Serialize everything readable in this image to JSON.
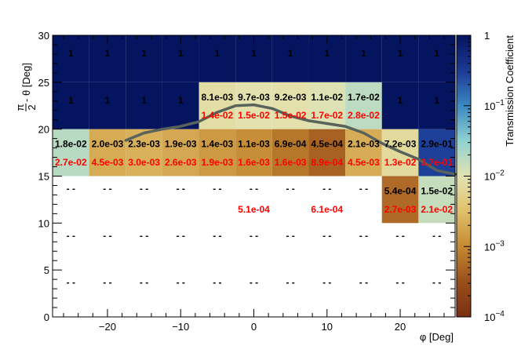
{
  "chart_data": {
    "type": "heatmap",
    "xlabel": "φ [Deg]",
    "ylabel": "π/2 - θ [Deg]",
    "ylabel_parts": {
      "frac_num": "π",
      "frac_den": "2",
      "rest": " - θ [Deg]"
    },
    "colorbar_label": "Transmission Coefficient",
    "color_scale": "log",
    "xlim": [
      -27.5,
      27.5
    ],
    "ylim": [
      0,
      30
    ],
    "x_ticks": [
      -20,
      -10,
      0,
      10,
      20
    ],
    "x_tick_labels": [
      "−20",
      "−10",
      "0",
      "10",
      "20"
    ],
    "y_ticks": [
      0,
      5,
      10,
      15,
      20,
      25,
      30
    ],
    "y_tick_labels": [
      "0",
      "5",
      "10",
      "15",
      "20",
      "25",
      "30"
    ],
    "colorbar_range": [
      0.0001,
      1
    ],
    "colorbar_ticks": [
      {
        "value": 1,
        "label": "1",
        "base": "",
        "exp": ""
      },
      {
        "value": 0.1,
        "label": "",
        "base": "10",
        "exp": "−1"
      },
      {
        "value": 0.01,
        "label": "",
        "base": "10",
        "exp": "−2"
      },
      {
        "value": 0.001,
        "label": "",
        "base": "10",
        "exp": "−3"
      },
      {
        "value": 0.0001,
        "label": "",
        "base": "10",
        "exp": "−4"
      }
    ],
    "x_bin_edges": [
      -27.5,
      -22.5,
      -17.5,
      -12.5,
      -7.5,
      -2.5,
      2.5,
      7.5,
      12.5,
      17.5,
      22.5,
      27.5
    ],
    "y_bin_edges": [
      0,
      5,
      10,
      15,
      20,
      25,
      30
    ],
    "cells": [
      {
        "xi": 0,
        "yi": 5,
        "value": 1,
        "black": "1",
        "red": ""
      },
      {
        "xi": 1,
        "yi": 5,
        "value": 1,
        "black": "1",
        "red": ""
      },
      {
        "xi": 2,
        "yi": 5,
        "value": 1,
        "black": "1",
        "red": ""
      },
      {
        "xi": 3,
        "yi": 5,
        "value": 1,
        "black": "1",
        "red": ""
      },
      {
        "xi": 4,
        "yi": 5,
        "value": 1,
        "black": "1",
        "red": ""
      },
      {
        "xi": 5,
        "yi": 5,
        "value": 1,
        "black": "1",
        "red": ""
      },
      {
        "xi": 6,
        "yi": 5,
        "value": 1,
        "black": "1",
        "red": ""
      },
      {
        "xi": 7,
        "yi": 5,
        "value": 1,
        "black": "1",
        "red": ""
      },
      {
        "xi": 8,
        "yi": 5,
        "value": 1,
        "black": "1",
        "red": ""
      },
      {
        "xi": 9,
        "yi": 5,
        "value": 1,
        "black": "1",
        "red": ""
      },
      {
        "xi": 10,
        "yi": 5,
        "value": 1,
        "black": "1",
        "red": ""
      },
      {
        "xi": 0,
        "yi": 4,
        "value": 1,
        "black": "1",
        "red": ""
      },
      {
        "xi": 1,
        "yi": 4,
        "value": 1,
        "black": "1",
        "red": ""
      },
      {
        "xi": 2,
        "yi": 4,
        "value": 1,
        "black": "1",
        "red": ""
      },
      {
        "xi": 3,
        "yi": 4,
        "value": 1,
        "black": "1",
        "red": ""
      },
      {
        "xi": 4,
        "yi": 4,
        "value": 0.0081,
        "black": "8.1e-03",
        "red": "1.4e-02"
      },
      {
        "xi": 5,
        "yi": 4,
        "value": 0.0097,
        "black": "9.7e-03",
        "red": "1.5e-02"
      },
      {
        "xi": 6,
        "yi": 4,
        "value": 0.0092,
        "black": "9.2e-03",
        "red": "1.5e-02"
      },
      {
        "xi": 7,
        "yi": 4,
        "value": 0.011,
        "black": "1.1e-02",
        "red": "1.7e-02"
      },
      {
        "xi": 8,
        "yi": 4,
        "value": 0.017,
        "black": "1.7e-02",
        "red": "2.8e-02"
      },
      {
        "xi": 9,
        "yi": 4,
        "value": 1,
        "black": "1",
        "red": ""
      },
      {
        "xi": 10,
        "yi": 4,
        "value": 1,
        "black": "1",
        "red": ""
      },
      {
        "xi": 0,
        "yi": 3,
        "value": 0.018,
        "black": "1.8e-02",
        "red": "2.7e-02"
      },
      {
        "xi": 1,
        "yi": 3,
        "value": 0.002,
        "black": "2.0e-03",
        "red": "4.5e-03"
      },
      {
        "xi": 2,
        "yi": 3,
        "value": 0.0023,
        "black": "2.3e-03",
        "red": "3.0e-03"
      },
      {
        "xi": 3,
        "yi": 3,
        "value": 0.0019,
        "black": "1.9e-03",
        "red": "2.6e-03"
      },
      {
        "xi": 4,
        "yi": 3,
        "value": 0.0014,
        "black": "1.4e-03",
        "red": "1.9e-03"
      },
      {
        "xi": 5,
        "yi": 3,
        "value": 0.0011,
        "black": "1.1e-03",
        "red": "1.6e-03"
      },
      {
        "xi": 6,
        "yi": 3,
        "value": 0.00069,
        "black": "6.9e-04",
        "red": "1.6e-03"
      },
      {
        "xi": 7,
        "yi": 3,
        "value": 0.00045,
        "black": "4.5e-04",
        "red": "8.9e-04"
      },
      {
        "xi": 8,
        "yi": 3,
        "value": 0.0021,
        "black": "2.1e-03",
        "red": "4.5e-03"
      },
      {
        "xi": 9,
        "yi": 3,
        "value": 0.0072,
        "black": "7.2e-03",
        "red": "1.3e-02"
      },
      {
        "xi": 10,
        "yi": 3,
        "value": 0.29,
        "black": "2.9e-01",
        "red": "3.7e-01"
      },
      {
        "xi": 9,
        "yi": 2,
        "value": 0.00054,
        "black": "5.4e-04",
        "red": "2.7e-03"
      },
      {
        "xi": 10,
        "yi": 2,
        "value": 0.015,
        "black": "1.5e-02",
        "red": "2.1e-02"
      }
    ],
    "empty_labels": [
      {
        "xi": 5,
        "yi": 2,
        "red": "5.1e-04"
      },
      {
        "xi": 7,
        "yi": 2,
        "red": "6.1e-04"
      }
    ],
    "dash_label": "- -",
    "dash_bins": [
      {
        "xi": 0,
        "yi": 2
      },
      {
        "xi": 1,
        "yi": 2
      },
      {
        "xi": 2,
        "yi": 2
      },
      {
        "xi": 3,
        "yi": 2
      },
      {
        "xi": 4,
        "yi": 2
      },
      {
        "xi": 5,
        "yi": 2
      },
      {
        "xi": 6,
        "yi": 2
      },
      {
        "xi": 7,
        "yi": 2
      },
      {
        "xi": 8,
        "yi": 2
      },
      {
        "xi": 0,
        "yi": 1
      },
      {
        "xi": 1,
        "yi": 1
      },
      {
        "xi": 2,
        "yi": 1
      },
      {
        "xi": 3,
        "yi": 1
      },
      {
        "xi": 4,
        "yi": 1
      },
      {
        "xi": 5,
        "yi": 1
      },
      {
        "xi": 6,
        "yi": 1
      },
      {
        "xi": 7,
        "yi": 1
      },
      {
        "xi": 8,
        "yi": 1
      },
      {
        "xi": 9,
        "yi": 1
      },
      {
        "xi": 10,
        "yi": 1
      },
      {
        "xi": 0,
        "yi": 0
      },
      {
        "xi": 1,
        "yi": 0
      },
      {
        "xi": 2,
        "yi": 0
      },
      {
        "xi": 3,
        "yi": 0
      },
      {
        "xi": 4,
        "yi": 0
      },
      {
        "xi": 5,
        "yi": 0
      },
      {
        "xi": 6,
        "yi": 0
      },
      {
        "xi": 7,
        "yi": 0
      },
      {
        "xi": 8,
        "yi": 0
      },
      {
        "xi": 9,
        "yi": 0
      },
      {
        "xi": 10,
        "yi": 0
      }
    ],
    "horizon_curve": {
      "color": "#58635c",
      "points": [
        [
          -17.5,
          18.8
        ],
        [
          -15,
          19.6
        ],
        [
          -12.5,
          20.0
        ],
        [
          -10,
          20.3
        ],
        [
          -7.5,
          20.8
        ],
        [
          -5,
          21.8
        ],
        [
          -2.5,
          22.5
        ],
        [
          0,
          22.6
        ],
        [
          2.5,
          22.2
        ],
        [
          5,
          21.4
        ],
        [
          7.5,
          20.9
        ],
        [
          10,
          20.6
        ],
        [
          12.5,
          20.3
        ],
        [
          15,
          19.6
        ],
        [
          17.5,
          18.5
        ],
        [
          20,
          17.6
        ],
        [
          22.5,
          16.8
        ],
        [
          25,
          15.6
        ],
        [
          27.5,
          15.2
        ]
      ]
    },
    "palette": [
      "#04145f",
      "#1c3994",
      "#3b88c2",
      "#8fd2d2",
      "#e3e3b1",
      "#e0c06a",
      "#c58a33",
      "#9a4f1a",
      "#7a2e13"
    ],
    "text_colors": {
      "primary": "#000000",
      "secondary": "#ff0000"
    }
  }
}
